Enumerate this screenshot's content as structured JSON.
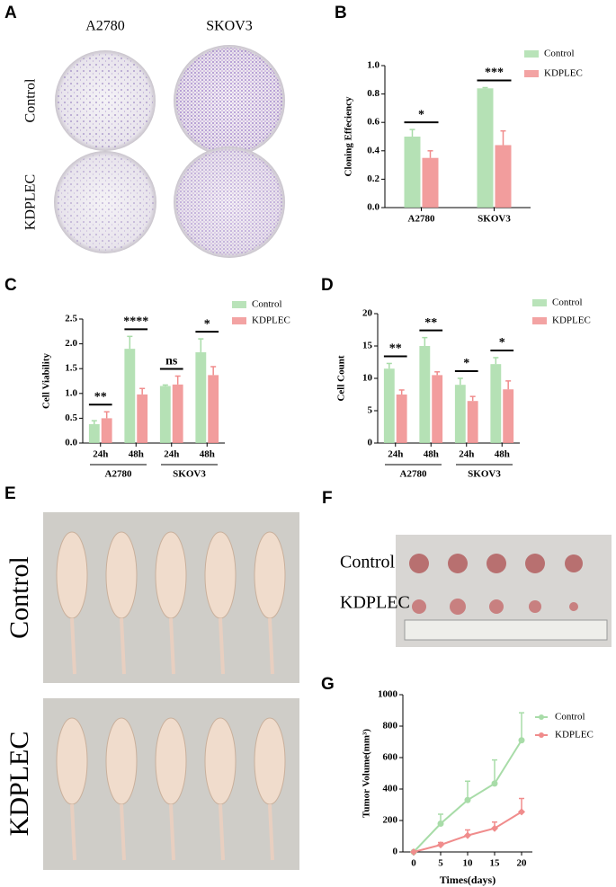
{
  "panels": [
    "A",
    "B",
    "C",
    "D",
    "E",
    "F",
    "G"
  ],
  "figure_A": {
    "columns": [
      "A2780",
      "SKOV3"
    ],
    "rows": [
      "Control",
      "KDPLEC"
    ]
  },
  "figure_E": {
    "rows": [
      "Control",
      "KDPLEC"
    ]
  },
  "figure_F": {
    "rows": [
      "Control",
      "KDPLEC"
    ]
  },
  "chart_data": [
    {
      "type": "bar",
      "ylabel": "Cloning Effeciency",
      "categories": [
        "A2780",
        "SKOV3"
      ],
      "series": [
        {
          "name": "Control",
          "color": "#a8dca8",
          "values": [
            0.5,
            0.84
          ],
          "errors": [
            0.05,
            0.005
          ]
        },
        {
          "name": "KDPLEC",
          "color": "#f08c8c",
          "values": [
            0.35,
            0.44
          ],
          "errors": [
            0.05,
            0.1
          ]
        }
      ],
      "annotations": [
        "*",
        "***"
      ],
      "ylim": [
        0,
        1
      ],
      "yticks": [
        {
          "value": 0,
          "label": "0.0"
        },
        0.2,
        0.4,
        0.6,
        0.8,
        {
          "value": 1,
          "label": "1.0"
        }
      ]
    },
    {
      "type": "bar",
      "ylabel": "Cell Viability",
      "categories": [
        "24h",
        "48h",
        "24h",
        "48h"
      ],
      "group_labels": [
        "A2780",
        "SKOV3"
      ],
      "series": [
        {
          "name": "Control",
          "color": "#a8dca8",
          "values": [
            0.38,
            1.9,
            1.15,
            1.83
          ],
          "errors": [
            0.07,
            0.25,
            0.02,
            0.27
          ]
        },
        {
          "name": "KDPLEC",
          "color": "#f08c8c",
          "values": [
            0.5,
            0.98,
            1.18,
            1.37
          ],
          "errors": [
            0.13,
            0.12,
            0.17,
            0.17
          ]
        }
      ],
      "annotations": [
        "**",
        "****",
        "ns",
        "*"
      ],
      "ylim": [
        0,
        2.5
      ],
      "yticks": [
        {
          "value": 0,
          "label": "0.0"
        },
        0.5,
        {
          "value": 1,
          "label": "1.0"
        },
        1.5,
        {
          "value": 2,
          "label": "2.0"
        },
        2.5
      ]
    },
    {
      "type": "bar",
      "ylabel": "Cell Count",
      "categories": [
        "24h",
        "48h",
        "24h",
        "48h"
      ],
      "group_labels": [
        "A2780",
        "SKOV3"
      ],
      "series": [
        {
          "name": "Control",
          "color": "#a8dca8",
          "values": [
            11.5,
            15,
            9,
            12.2
          ],
          "errors": [
            0.8,
            1.3,
            1,
            1
          ]
        },
        {
          "name": "KDPLEC",
          "color": "#f08c8c",
          "values": [
            7.5,
            10.5,
            6.5,
            8.3
          ],
          "errors": [
            0.7,
            0.5,
            0.7,
            1.3
          ]
        }
      ],
      "annotations": [
        "**",
        "**",
        "*",
        "*"
      ],
      "ylim": [
        0,
        20
      ],
      "yticks": [
        0,
        5,
        10,
        15,
        20
      ]
    },
    {
      "type": "line",
      "ylabel": "Tumor Volume(mm³)",
      "xlabel": "Times(days)",
      "x": [
        0,
        5,
        10,
        15,
        20
      ],
      "series": [
        {
          "name": "Control",
          "color": "#a8dca8",
          "marker": "circle",
          "values": [
            0,
            180,
            330,
            435,
            710
          ],
          "errors": [
            0,
            60,
            120,
            150,
            175
          ]
        },
        {
          "name": "KDPLEC",
          "color": "#f08c8c",
          "marker": "diamond",
          "values": [
            0,
            45,
            105,
            150,
            255
          ],
          "errors": [
            0,
            15,
            35,
            40,
            85
          ]
        }
      ],
      "xlim": [
        -2,
        22
      ],
      "xticks": [
        0,
        5,
        10,
        15,
        20
      ],
      "ylim": [
        0,
        1000
      ],
      "yticks": [
        0,
        200,
        400,
        600,
        800,
        1000
      ]
    }
  ]
}
